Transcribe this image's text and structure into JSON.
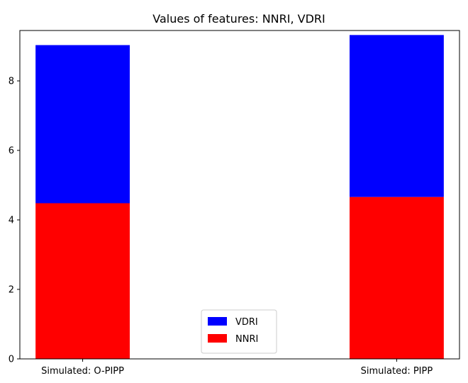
{
  "chart_data": {
    "type": "bar",
    "stacked": true,
    "title": "Values of features: NNRI, VDRI",
    "xlabel": "",
    "ylabel": "",
    "categories": [
      "Simulated: O-PIPP",
      "Simulated: PIPP"
    ],
    "series": [
      {
        "name": "NNRI",
        "color": "#ff0000",
        "values": [
          4.48,
          4.66
        ]
      },
      {
        "name": "VDRI",
        "color": "#0000ff",
        "values": [
          4.55,
          4.66
        ]
      }
    ],
    "ylim": [
      0,
      9.45
    ],
    "yticks": [
      0,
      2,
      4,
      6,
      8
    ],
    "legend": {
      "placement": "lower-center",
      "order": [
        "VDRI",
        "NNRI"
      ]
    },
    "grid": false
  }
}
